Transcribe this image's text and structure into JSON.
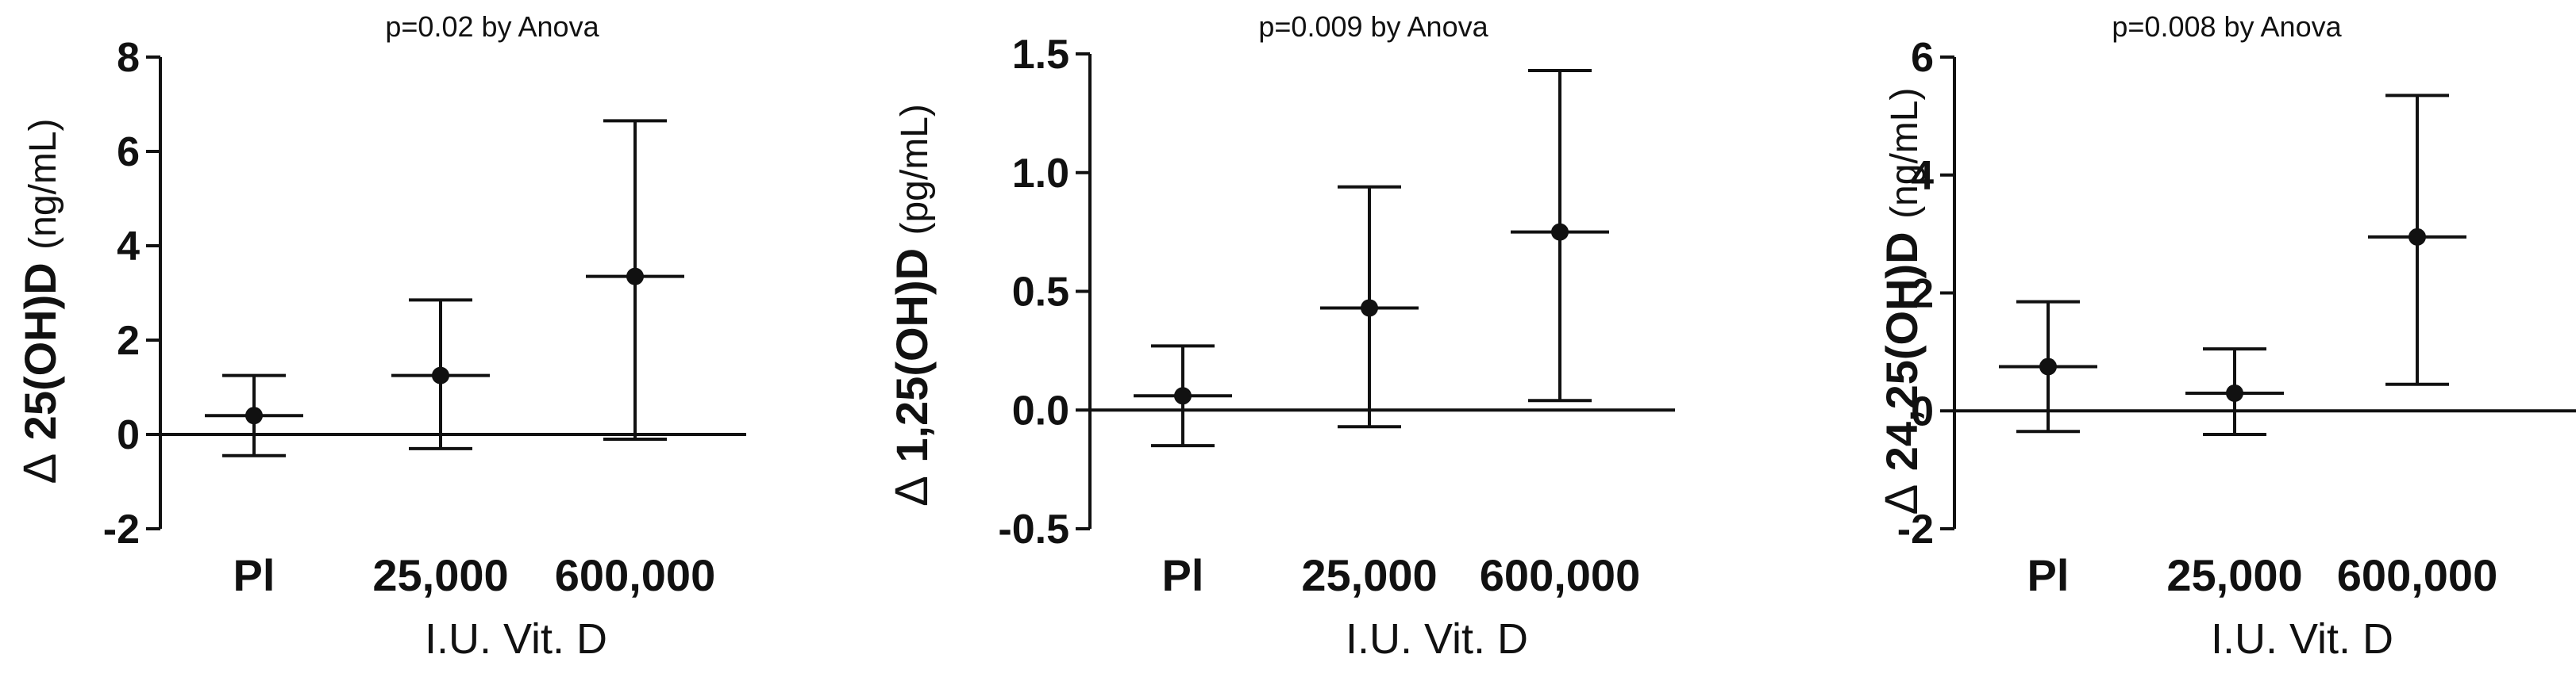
{
  "chart_data": [
    {
      "type": "scatter",
      "annotation": "p=0.02 by Anova",
      "ylabel_prefix": "Δ",
      "ylabel_bold": "25(OH)D",
      "ylabel_unit": "(ng/mL)",
      "xlabel": "I.U. Vit. D",
      "categories": [
        "Pl",
        "25,000",
        "600,000"
      ],
      "values": [
        0.4,
        1.25,
        3.35
      ],
      "error_low": [
        -0.45,
        -0.3,
        -0.1
      ],
      "error_high": [
        1.25,
        2.85,
        6.65
      ],
      "ylim": [
        -2,
        8
      ],
      "yticks": [
        -2,
        0,
        2,
        4,
        6,
        8
      ],
      "ytick_labels": [
        "-2",
        "0",
        "2",
        "4",
        "6",
        "8"
      ]
    },
    {
      "type": "scatter",
      "annotation": "p=0.009 by Anova",
      "ylabel_prefix": "Δ",
      "ylabel_bold": "1,25(OH)D",
      "ylabel_unit": "(pg/mL)",
      "xlabel": "I.U. Vit. D",
      "categories": [
        "Pl",
        "25,000",
        "600,000"
      ],
      "values": [
        0.06,
        0.43,
        0.75
      ],
      "error_low": [
        -0.15,
        -0.07,
        0.04
      ],
      "error_high": [
        0.27,
        0.94,
        1.43
      ],
      "ylim": [
        -0.5,
        1.5
      ],
      "yticks": [
        -0.5,
        0.0,
        0.5,
        1.0,
        1.5
      ],
      "ytick_labels": [
        "-0.5",
        "0.0",
        "0.5",
        "1.0",
        "1.5"
      ]
    },
    {
      "type": "scatter",
      "annotation": "p=0.008 by Anova",
      "ylabel_prefix": "Δ",
      "ylabel_bold": "24,25(OH)D",
      "ylabel_unit": "(ng/mL)",
      "xlabel": "I.U. Vit. D",
      "categories": [
        "Pl",
        "25,000",
        "600,000"
      ],
      "values": [
        0.75,
        0.3,
        2.95
      ],
      "error_low": [
        -0.35,
        -0.4,
        0.45
      ],
      "error_high": [
        1.85,
        1.05,
        5.35
      ],
      "ylim": [
        -2,
        6
      ],
      "yticks": [
        -2,
        0,
        2,
        4,
        6
      ],
      "ytick_labels": [
        "-2",
        "0",
        "2",
        "4",
        "6"
      ]
    }
  ]
}
